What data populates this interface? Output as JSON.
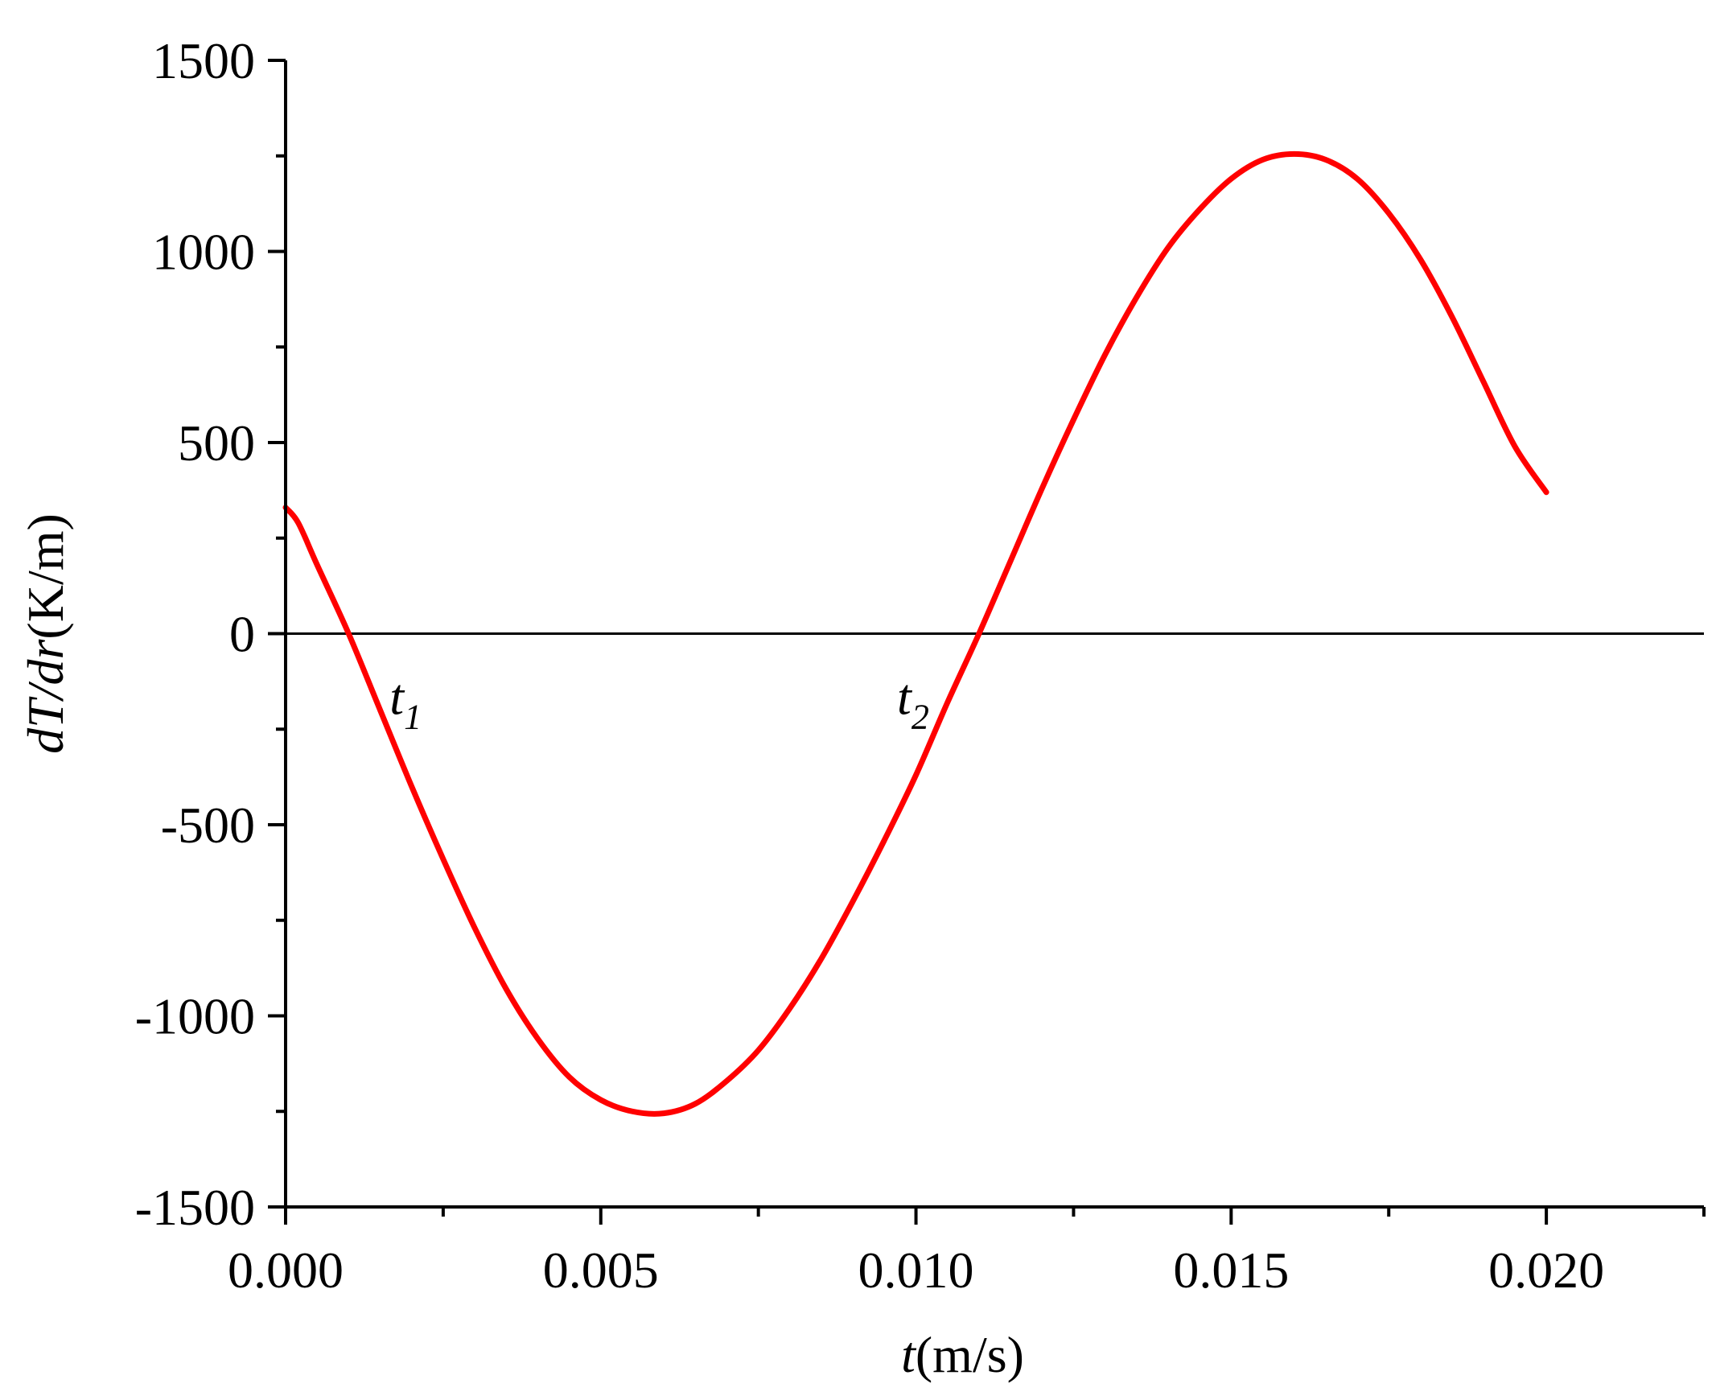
{
  "chart_data": {
    "type": "line",
    "title": "",
    "xlabel": {
      "italic": "t",
      "rest": "(m/s)"
    },
    "ylabel": {
      "p1": "dT",
      "p2": "/",
      "p3": "dr",
      "p4": "(K/m)"
    },
    "xlim": [
      0.0,
      0.0225
    ],
    "ylim": [
      -1500,
      1500
    ],
    "x_ticks": [
      0.0,
      0.005,
      0.01,
      0.015,
      0.02
    ],
    "x_tick_labels": [
      "0.000",
      "0.005",
      "0.010",
      "0.015",
      "0.020"
    ],
    "y_ticks": [
      -1500,
      -1000,
      -500,
      0,
      500,
      1000,
      1500
    ],
    "y_tick_labels": [
      "-1500",
      "-1000",
      "-500",
      "0",
      "500",
      "1000",
      "1500"
    ],
    "grid": false,
    "zero_line": true,
    "series": [
      {
        "color": "#ff0000",
        "x": [
          0.0,
          0.0002,
          0.0005,
          0.001,
          0.0015,
          0.002,
          0.0025,
          0.003,
          0.0035,
          0.004,
          0.0045,
          0.005,
          0.0055,
          0.006,
          0.0065,
          0.007,
          0.0075,
          0.008,
          0.0085,
          0.009,
          0.0095,
          0.01,
          0.0105,
          0.011,
          0.0115,
          0.012,
          0.0125,
          0.013,
          0.0135,
          0.014,
          0.0145,
          0.015,
          0.0155,
          0.016,
          0.0165,
          0.017,
          0.0175,
          0.018,
          0.0185,
          0.019,
          0.0195,
          0.02
        ],
        "y": [
          330,
          290,
          180,
          0,
          -200,
          -400,
          -590,
          -770,
          -930,
          -1060,
          -1160,
          -1220,
          -1250,
          -1255,
          -1230,
          -1170,
          -1090,
          -980,
          -850,
          -700,
          -540,
          -370,
          -180,
          0,
          190,
          380,
          560,
          730,
          880,
          1010,
          1110,
          1190,
          1240,
          1255,
          1240,
          1190,
          1100,
          980,
          830,
          660,
          490,
          370
        ]
      }
    ],
    "annotations": [
      {
        "base": "t",
        "sub": "1",
        "x": 0.00165,
        "y": -210
      },
      {
        "base": "t",
        "sub": "2",
        "x": 0.0097,
        "y": -210
      }
    ]
  }
}
